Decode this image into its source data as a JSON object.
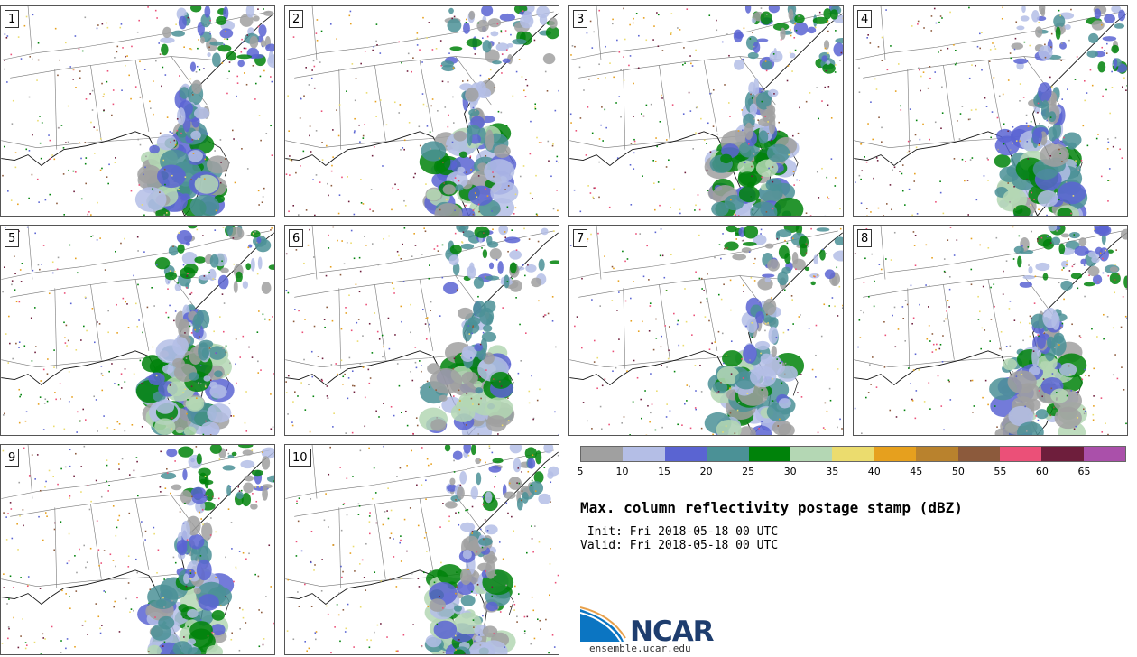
{
  "panels": [
    {
      "label": "1"
    },
    {
      "label": "2"
    },
    {
      "label": "3"
    },
    {
      "label": "4"
    },
    {
      "label": "5"
    },
    {
      "label": "6"
    },
    {
      "label": "7"
    },
    {
      "label": "8"
    },
    {
      "label": "9"
    },
    {
      "label": "10"
    }
  ],
  "colorbar": {
    "colors": [
      "#a0a0a0",
      "#b4bee6",
      "#5a64d2",
      "#4b9196",
      "#00820a",
      "#b4d7b4",
      "#ebdc6e",
      "#e6a01e",
      "#b9822d",
      "#8c5a3c",
      "#eb5078",
      "#6e1e3c",
      "#aa50aa"
    ],
    "ticks": [
      "5",
      "10",
      "15",
      "20",
      "25",
      "30",
      "35",
      "40",
      "45",
      "50",
      "55",
      "60",
      "65"
    ]
  },
  "title": "Max. column reflectivity postage stamp (dBZ)",
  "init_text": " Init: Fri 2018-05-18 00 UTC",
  "valid_text": "Valid: Fri 2018-05-18 00 UTC",
  "logo": {
    "name": "NCAR",
    "url": "ensemble.ucar.edu"
  }
}
